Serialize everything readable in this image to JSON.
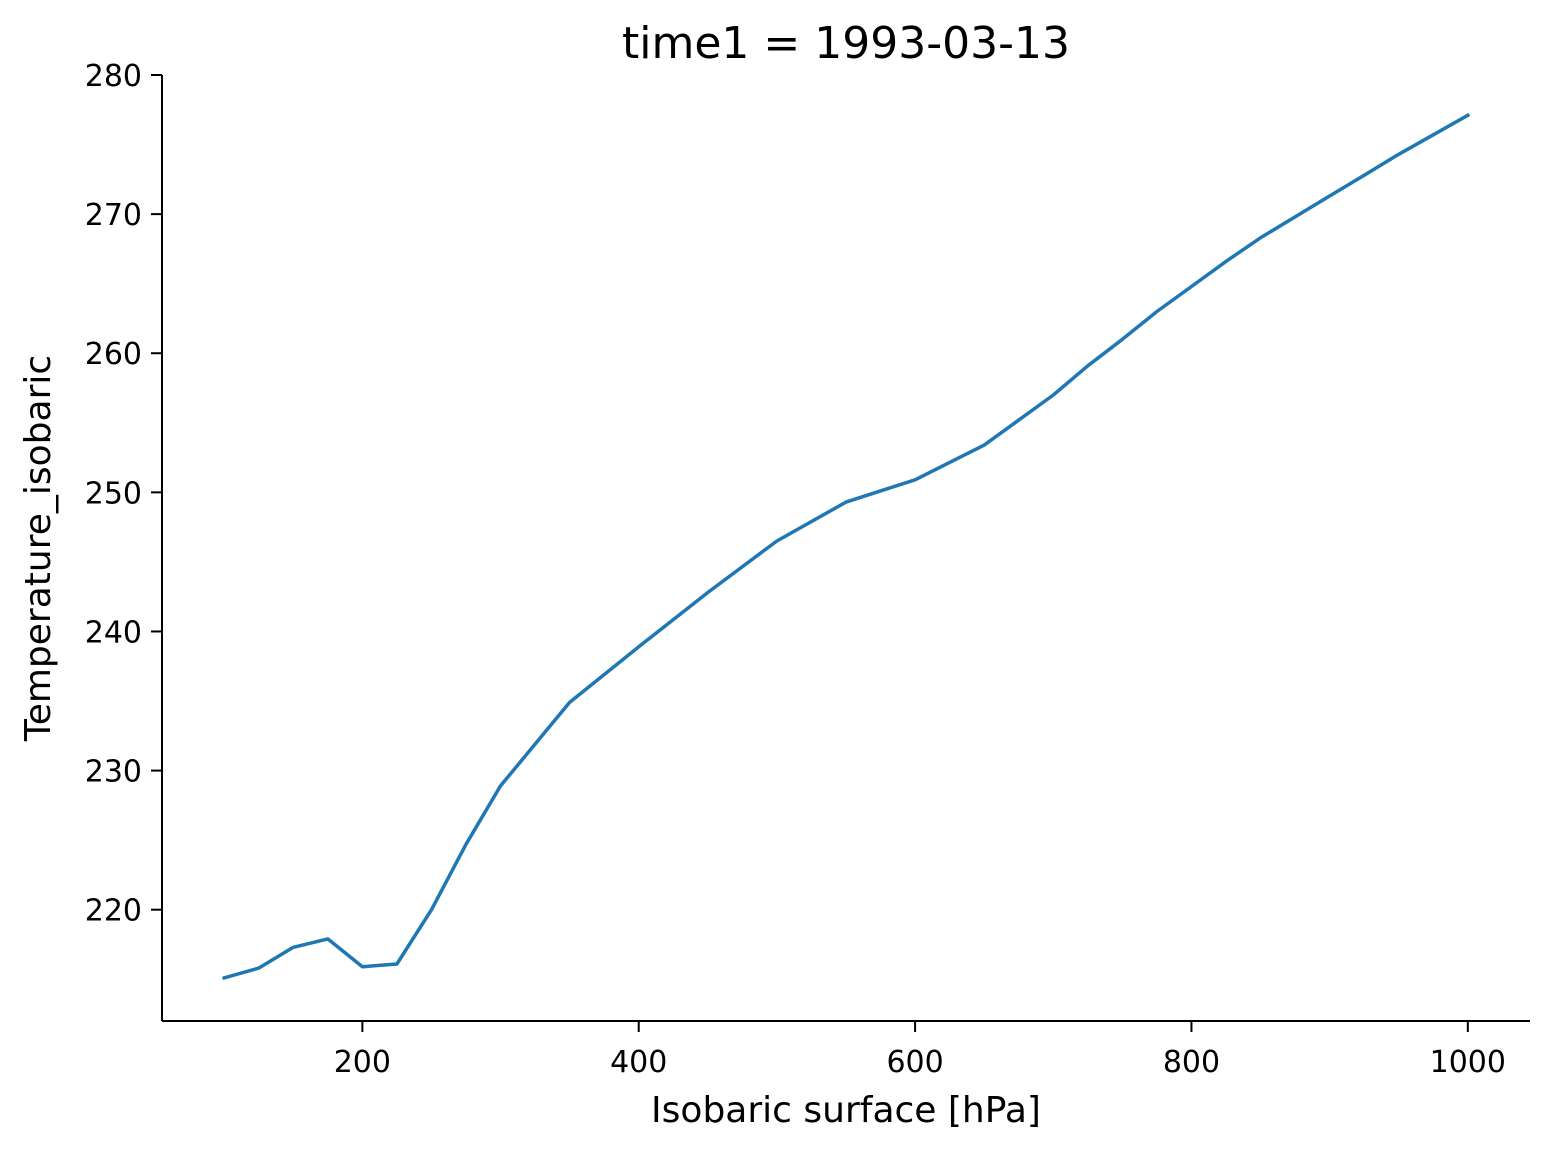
{
  "chart_data": {
    "type": "line",
    "title": "time1 = 1993-03-13",
    "xlabel": "Isobaric surface [hPa]",
    "ylabel": "Temperature_isobaric",
    "xlim": [
      55,
      1045
    ],
    "ylim": [
      212,
      280
    ],
    "xticks": [
      200,
      400,
      600,
      800,
      1000
    ],
    "yticks": [
      220,
      230,
      240,
      250,
      260,
      270,
      280
    ],
    "grid": false,
    "series": [
      {
        "color": "#1f77b4",
        "x": [
          100,
          125,
          150,
          175,
          200,
          225,
          250,
          275,
          300,
          350,
          400,
          450,
          500,
          550,
          600,
          650,
          700,
          725,
          750,
          775,
          800,
          825,
          850,
          875,
          900,
          925,
          950,
          975,
          1000
        ],
        "y": [
          215.1,
          215.8,
          217.3,
          217.9,
          215.9,
          216.1,
          220.0,
          224.7,
          228.9,
          234.9,
          238.9,
          242.8,
          246.5,
          249.3,
          250.9,
          253.4,
          257.0,
          259.1,
          261.0,
          263.0,
          264.8,
          266.6,
          268.3,
          269.8,
          271.3,
          272.8,
          274.3,
          275.7,
          277.1
        ]
      }
    ]
  }
}
